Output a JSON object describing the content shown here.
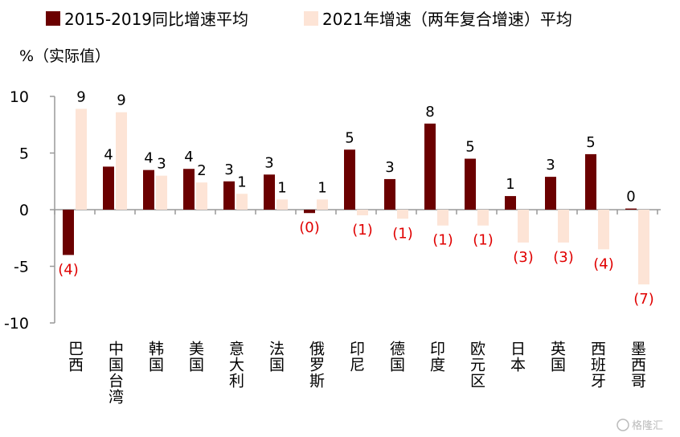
{
  "chart_data": {
    "type": "bar",
    "unit_label": "%（实际值）",
    "ylim": [
      -10,
      10
    ],
    "yticks": [
      10,
      5,
      0,
      -5,
      -10
    ],
    "ytick_labels": [
      "10",
      "5",
      "0",
      "-5",
      "-10"
    ],
    "categories": [
      "巴西",
      "中国台湾",
      "韩国",
      "美国",
      "意大利",
      "法国",
      "俄罗斯",
      "印尼",
      "德国",
      "印度",
      "欧元区",
      "日本",
      "英国",
      "西班牙",
      "墨西哥"
    ],
    "series": [
      {
        "name": "2015-2019同比增速平均",
        "color": "#6b0000",
        "values": [
          -4.0,
          3.8,
          3.5,
          3.6,
          2.5,
          3.1,
          -0.3,
          5.3,
          2.7,
          7.6,
          4.5,
          1.2,
          2.9,
          4.9,
          0.1
        ],
        "labels": [
          "(4)",
          "4",
          "4",
          "4",
          "3",
          "3",
          "(0)",
          "5",
          "3",
          "8",
          "5",
          "1",
          "3",
          "5",
          "0"
        ]
      },
      {
        "name": "2021年增速（两年复合增速）平均",
        "color": "#fde4d6",
        "values": [
          8.9,
          8.6,
          3.0,
          2.4,
          1.4,
          0.9,
          0.9,
          -0.5,
          -0.8,
          -1.4,
          -1.4,
          -2.9,
          -2.9,
          -3.5,
          -6.6
        ],
        "labels": [
          "9",
          "9",
          "3",
          "2",
          "1",
          "1",
          "1",
          "(1)",
          "(1)",
          "(1)",
          "(1)",
          "(3)",
          "(3)",
          "(4)",
          "(7)"
        ]
      }
    ],
    "negative_label_color": "#e00000",
    "label_color": "#000000",
    "grid": false,
    "legend_position": "top-left"
  },
  "watermark": "格隆汇"
}
